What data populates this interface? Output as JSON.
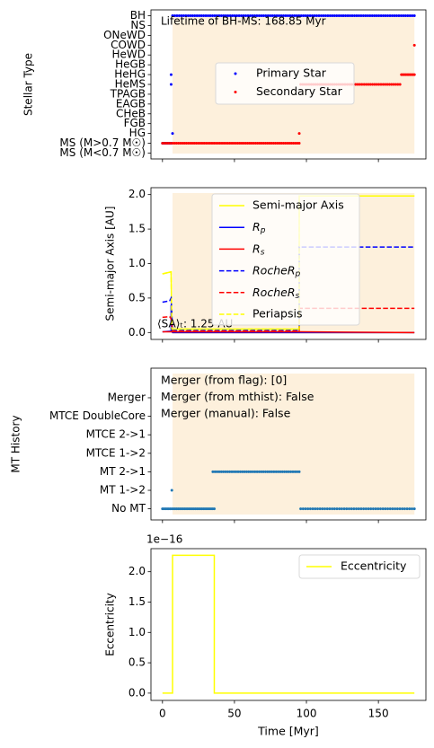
{
  "chart_data": [
    {
      "type": "scatter",
      "ylabel": "Stellar Type",
      "ytick_labels": [
        "MS (M<0.7 M☉)",
        "MS (M>0.7 M☉)",
        "HG",
        "FGB",
        "CHeB",
        "EAGB",
        "TPAGB",
        "HeMS",
        "HeHG",
        "HeGB",
        "HeWD",
        "COWD",
        "ONeWD",
        "NS",
        "BH"
      ],
      "xlim": [
        -8,
        183
      ],
      "ylim": [
        -0.6,
        14.6
      ],
      "shaded_span": [
        7,
        175
      ],
      "annotation": "Lifetime of BH-MS: 168.85 Myr",
      "legend": {
        "position": "center-right",
        "entries": [
          "Primary Star",
          "Secondary Star"
        ]
      },
      "series": [
        {
          "name": "Primary Star",
          "color": "#0000ff",
          "segments": [
            {
              "x": [
                0,
                6
              ],
              "y": 1,
              "n": 24
            },
            {
              "x": [
                6,
                6
              ],
              "y": 7,
              "n": 1
            },
            {
              "x": [
                6,
                6
              ],
              "y": 8,
              "n": 1
            },
            {
              "x": [
                7,
                175
              ],
              "y": 14,
              "n": 110
            },
            {
              "x": [
                7,
                7
              ],
              "y": 2,
              "n": 1
            }
          ]
        },
        {
          "name": "Secondary Star",
          "color": "#ff0000",
          "segments": [
            {
              "x": [
                0,
                95
              ],
              "y": 1,
              "n": 70
            },
            {
              "x": [
                95,
                95
              ],
              "y": 2,
              "n": 1
            },
            {
              "x": [
                96,
                165
              ],
              "y": 7,
              "n": 48
            },
            {
              "x": [
                166,
                175
              ],
              "y": 8,
              "n": 10
            },
            {
              "x": [
                175,
                175
              ],
              "y": 11,
              "n": 1
            }
          ]
        }
      ]
    },
    {
      "type": "line",
      "ylabel": "Semi-major Axis [AU]",
      "xlim": [
        -8,
        183
      ],
      "ylim": [
        -0.1,
        2.1
      ],
      "yticks": [
        "0.0",
        "0.5",
        "1.0",
        "1.5",
        "2.0"
      ],
      "shaded_span": [
        7,
        175
      ],
      "annotation": "⟨SA⟩ₜ: 1.25 AU",
      "legend": {
        "position": "upper-center",
        "entries": [
          "Semi-major Axis",
          "R_p",
          "R_s",
          "RocheR_p",
          "RocheR_s",
          "Periapsis"
        ]
      },
      "series": [
        {
          "name": "Semi-major Axis",
          "color": "#ffff00",
          "style": "solid",
          "x": [
            0,
            6,
            6.5,
            7,
            95,
            95,
            175
          ],
          "y": [
            0.85,
            0.88,
            0.05,
            0.05,
            0.05,
            1.98,
            1.98
          ]
        },
        {
          "name": "R_p",
          "color": "#0000ff",
          "style": "solid",
          "x": [
            0,
            6,
            6,
            6.5,
            7,
            175
          ],
          "y": [
            0.01,
            0.02,
            0.4,
            0.02,
            0.0,
            0.0
          ]
        },
        {
          "name": "R_s",
          "color": "#ff0000",
          "style": "solid",
          "x": [
            0,
            95,
            175
          ],
          "y": [
            0.01,
            0.01,
            0.0
          ]
        },
        {
          "name": "RocheR_p",
          "color": "#0000ff",
          "style": "dashed",
          "x": [
            0,
            5,
            6,
            7,
            95,
            95,
            175
          ],
          "y": [
            0.44,
            0.46,
            0.5,
            0.03,
            0.03,
            1.24,
            1.24
          ]
        },
        {
          "name": "RocheR_s",
          "color": "#ff0000",
          "style": "dashed",
          "x": [
            0,
            5,
            6,
            7,
            95,
            95,
            175
          ],
          "y": [
            0.22,
            0.23,
            0.2,
            0.02,
            0.02,
            0.35,
            0.35
          ]
        },
        {
          "name": "Periapsis",
          "color": "#ffff00",
          "style": "dashed",
          "x": [
            0,
            6,
            6.5,
            7,
            95,
            95,
            175
          ],
          "y": [
            0.85,
            0.88,
            0.05,
            0.05,
            0.05,
            1.98,
            1.98
          ]
        }
      ]
    },
    {
      "type": "scatter",
      "ylabel": "MT History",
      "ytick_labels": [
        "No MT",
        "MT 1->2",
        "MT 2->1",
        "MTCE 1->2",
        "MTCE 2->1",
        "MTCE DoubleCore",
        "Merger"
      ],
      "xlim": [
        -8,
        183
      ],
      "ylim": [
        -0.6,
        7.6
      ],
      "shaded_span": [
        7,
        175
      ],
      "annotations": [
        "Merger (from flag): [0]",
        "Merger (from mthist): False",
        "Merger (manual): False"
      ],
      "series": [
        {
          "name": "",
          "color": "#1f77b4",
          "segments": [
            {
              "x": [
                0,
                36
              ],
              "y": 0,
              "n": 34
            },
            {
              "x": [
                6.5,
                6.5
              ],
              "y": 1,
              "n": 1
            },
            {
              "x": [
                35,
                95
              ],
              "y": 2,
              "n": 42
            },
            {
              "x": [
                96,
                175
              ],
              "y": 0,
              "n": 48
            }
          ]
        }
      ]
    },
    {
      "type": "line",
      "ylabel": "Eccentricity",
      "xlabel": "Time [Myr]",
      "xlim": [
        -8,
        183
      ],
      "ylim": [
        -0.12,
        2.38
      ],
      "yticks": [
        "0.0",
        "0.5",
        "1.0",
        "1.5",
        "2.0"
      ],
      "xticks": [
        "0",
        "50",
        "100",
        "150"
      ],
      "offset_label": "1e−16",
      "legend": {
        "position": "upper-right",
        "entries": [
          "Eccentricity"
        ]
      },
      "series": [
        {
          "name": "Eccentricity",
          "color": "#ffff00",
          "style": "solid",
          "x": [
            0,
            7,
            7,
            36,
            36,
            175
          ],
          "y": [
            0,
            0,
            2.27,
            2.27,
            0,
            0
          ]
        }
      ]
    }
  ]
}
